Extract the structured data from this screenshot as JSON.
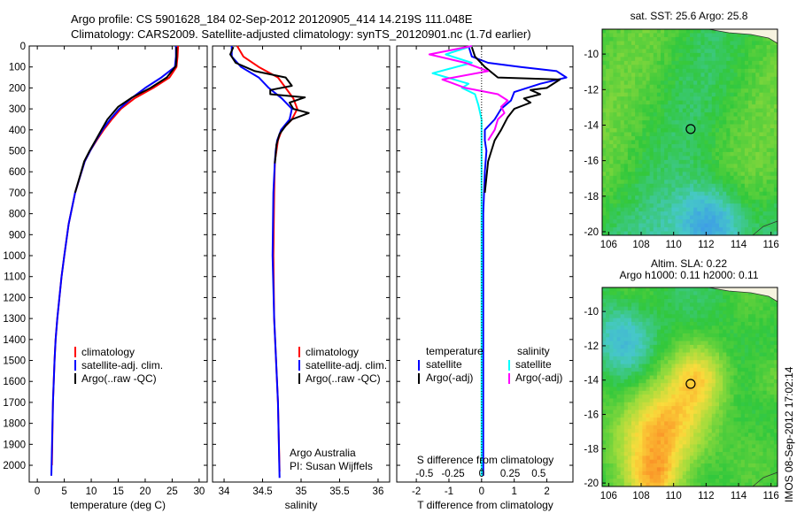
{
  "header": {
    "title_line1": "Argo profile: CS 5901628_184 02-Sep-2012 20120905_414 14.219S 111.048E",
    "title_line2": "Climatology: CARS2009. Satellite-adjusted climatology: synTS_20120901.nc (1.7d earlier)"
  },
  "colors": {
    "climatology": "#ff0000",
    "satellite": "#0000ff",
    "argo": "#000000",
    "sat_salinity": "#00ffff",
    "argo_salinity": "#ff00ff"
  },
  "panel_temperature": {
    "xlabel": "temperature (deg C)",
    "legend": [
      "climatology",
      "satellite-adj. clim.",
      "Argo(..raw -QC)"
    ]
  },
  "panel_salinity": {
    "xlabel": "salinity",
    "legend": [
      "climatology",
      "satellite-adj. clim.",
      "Argo(..raw -QC)"
    ],
    "note_line1": "Argo Australia",
    "note_line2": "PI: Susan Wijffels"
  },
  "panel_difference": {
    "xlabel_bottom": "T difference from climatology",
    "xlabel_top": "S difference from climatology",
    "legend_headers": [
      "temperature",
      "salinity"
    ],
    "legend_temperature": [
      "satellite",
      "Argo(-adj)"
    ],
    "legend_salinity": [
      "satellite",
      "Argo(-adj)"
    ]
  },
  "map_sst": {
    "title": "sat. SST: 25.6 Argo: 25.8",
    "xticks": [
      "106",
      "108",
      "110",
      "112",
      "114",
      "116"
    ],
    "yticks": [
      "-10",
      "-12",
      "-14",
      "-16",
      "-18",
      "-20"
    ]
  },
  "map_sla": {
    "title_line1": "Altim. SLA: 0.22",
    "title_line2": "Argo h1000: 0.11 h2000: 0.11",
    "xticks": [
      "106",
      "108",
      "110",
      "112",
      "114",
      "116"
    ],
    "yticks": [
      "-10",
      "-12",
      "-14",
      "-16",
      "-18",
      "-20"
    ]
  },
  "side_stamp": "IMOS 08-Sep-2012 17:02:14",
  "chart_data": [
    {
      "type": "line",
      "name": "temperature profile",
      "xlabel": "temperature (deg C)",
      "ylabel": "",
      "xlim": [
        -1.5,
        31.5
      ],
      "ylim": [
        2080,
        0
      ],
      "xticks": [
        0,
        5,
        10,
        15,
        20,
        25,
        30
      ],
      "yticks": [
        0,
        100,
        200,
        300,
        400,
        500,
        600,
        700,
        800,
        900,
        1000,
        1100,
        1200,
        1300,
        1400,
        1500,
        1600,
        1700,
        1800,
        1900,
        2000
      ],
      "series": [
        {
          "name": "climatology",
          "color": "#ff0000",
          "x": [
            26.1,
            26.0,
            25.8,
            24.5,
            21.5,
            18.0,
            15.5,
            13.8,
            12.3,
            11.0,
            9.8,
            8.8,
            7.0,
            5.8,
            5.0,
            4.5,
            4.1,
            3.7,
            3.4,
            3.2,
            2.9,
            2.7
          ],
          "y": [
            0,
            50,
            100,
            150,
            200,
            250,
            300,
            350,
            400,
            450,
            500,
            550,
            700,
            850,
            1000,
            1100,
            1200,
            1300,
            1400,
            1500,
            1700,
            2000
          ]
        },
        {
          "name": "satellite-adj. clim.",
          "color": "#0000ff",
          "x": [
            25.7,
            25.7,
            25.5,
            23.0,
            20.0,
            17.4,
            15.2,
            13.5,
            12.1,
            10.9,
            9.8,
            8.8,
            7.0,
            5.8,
            5.0,
            4.5,
            4.1,
            3.7,
            3.4,
            3.2,
            2.9,
            2.6
          ],
          "y": [
            0,
            50,
            100,
            150,
            200,
            250,
            300,
            350,
            400,
            450,
            500,
            550,
            700,
            850,
            1000,
            1100,
            1200,
            1300,
            1400,
            1500,
            1700,
            2050
          ]
        },
        {
          "name": "Argo(..raw -QC)",
          "color": "#000000",
          "x": [
            25.8,
            25.8,
            25.7,
            24.0,
            21.0,
            17.6,
            15.0,
            13.0,
            11.9,
            10.8,
            9.7,
            8.7,
            7.0
          ],
          "y": [
            5,
            50,
            95,
            150,
            200,
            245,
            290,
            350,
            400,
            450,
            500,
            550,
            700
          ]
        }
      ]
    },
    {
      "type": "line",
      "name": "salinity profile",
      "xlabel": "salinity",
      "ylabel": "",
      "xlim": [
        33.85,
        36.15
      ],
      "ylim": [
        2080,
        0
      ],
      "xticks": [
        34,
        34.5,
        35,
        35.5,
        36
      ],
      "series": [
        {
          "name": "climatology",
          "color": "#ff0000",
          "x": [
            34.17,
            34.25,
            34.45,
            34.7,
            34.8,
            34.9,
            34.95,
            34.88,
            34.75,
            34.7,
            34.68,
            34.66,
            34.65,
            34.64,
            34.65,
            34.7,
            34.72
          ],
          "y": [
            0,
            50,
            100,
            150,
            200,
            250,
            300,
            350,
            400,
            450,
            500,
            550,
            700,
            1000,
            1300,
            1700,
            2030
          ]
        },
        {
          "name": "satellite-adj. clim.",
          "color": "#0000ff",
          "x": [
            34.1,
            34.1,
            34.22,
            34.45,
            34.58,
            34.75,
            34.88,
            34.85,
            34.74,
            34.69,
            34.67,
            34.66,
            34.64,
            34.63,
            34.65,
            34.7,
            34.72
          ],
          "y": [
            0,
            50,
            100,
            150,
            200,
            250,
            300,
            350,
            400,
            450,
            500,
            550,
            700,
            1000,
            1300,
            1700,
            2060
          ]
        },
        {
          "name": "Argo(..raw -QC)",
          "color": "#000000",
          "x": [
            34.12,
            34.08,
            34.15,
            34.4,
            34.8,
            34.88,
            34.6,
            34.6,
            35.05,
            34.85,
            34.9,
            35.1,
            34.88,
            34.8,
            34.72,
            34.68,
            34.67,
            34.66
          ],
          "y": [
            5,
            40,
            80,
            120,
            150,
            190,
            210,
            230,
            245,
            270,
            300,
            320,
            350,
            380,
            420,
            470,
            520,
            560
          ]
        }
      ]
    },
    {
      "type": "line",
      "name": "difference profile",
      "xlabel": "T difference from climatology",
      "ylabel": "",
      "xlim": [
        -2.6,
        2.8
      ],
      "ylim": [
        2080,
        0
      ],
      "xticks": [
        -2,
        -1,
        0,
        1,
        2
      ],
      "xlabel_top": "S difference from climatology",
      "xticks_top": [
        -0.5,
        -0.25,
        0,
        0.25,
        0.5
      ],
      "top_tick_positions_in_T_units": [
        -1.75,
        -0.875,
        0,
        0.875,
        1.75
      ],
      "series": [
        {
          "name": "temperature satellite",
          "color": "#0000ff",
          "x": [
            -0.4,
            -0.3,
            0.2,
            1.2,
            2.3,
            2.6,
            1.8,
            1.0,
            0.9,
            0.6,
            0.4,
            0.1,
            0.1,
            0.15,
            0.1,
            0.05,
            0.05,
            0.05,
            0.05
          ],
          "y": [
            0,
            50,
            80,
            100,
            120,
            150,
            180,
            220,
            260,
            300,
            350,
            400,
            450,
            500,
            600,
            800,
            1000,
            1500,
            2050
          ]
        },
        {
          "name": "temperature Argo(-adj)",
          "color": "#000000",
          "x": [
            -0.3,
            -0.2,
            0.1,
            0.5,
            2.4,
            2.0,
            1.5,
            1.8,
            1.3,
            1.5,
            1.0,
            0.8,
            0.6,
            0.4,
            0.3,
            0.2,
            0.1
          ],
          "y": [
            5,
            50,
            100,
            150,
            160,
            200,
            210,
            230,
            250,
            270,
            300,
            340,
            400,
            450,
            500,
            550,
            700
          ]
        },
        {
          "name": "salinity satellite",
          "color": "#00ffff",
          "x": [
            -0.3,
            -1.1,
            -0.3,
            -1.5,
            -0.4,
            -0.6,
            -0.2,
            -0.1,
            0.0,
            0.0,
            0.0,
            0.0
          ],
          "y": [
            0,
            40,
            80,
            130,
            180,
            200,
            230,
            280,
            350,
            450,
            700,
            2050
          ]
        },
        {
          "name": "salinity Argo(-adj)",
          "color": "#ff00ff",
          "x": [
            -0.3,
            -1.6,
            -0.5,
            0.2,
            -1.2,
            -0.5,
            0.5,
            0.8,
            0.6,
            0.7,
            0.5,
            0.4,
            0.2
          ],
          "y": [
            0,
            40,
            80,
            120,
            160,
            200,
            230,
            260,
            290,
            320,
            350,
            400,
            450
          ]
        }
      ]
    },
    {
      "type": "heatmap",
      "name": "satellite SST map",
      "title": "sat. SST: 25.6 Argo: 25.8",
      "xlim": [
        105.6,
        116.4
      ],
      "ylim": [
        -20.2,
        -8.6
      ],
      "xticks": [
        106,
        108,
        110,
        112,
        114,
        116
      ],
      "yticks": [
        -10,
        -12,
        -14,
        -16,
        -18,
        -20
      ],
      "marker": {
        "lon": 111.048,
        "lat": -14.219
      }
    },
    {
      "type": "heatmap",
      "name": "altimetry SLA map",
      "title": "Altim. SLA: 0.22",
      "subtitle": "Argo h1000: 0.11 h2000: 0.11",
      "xlim": [
        105.6,
        116.4
      ],
      "ylim": [
        -20.2,
        -8.6
      ],
      "xticks": [
        106,
        108,
        110,
        112,
        114,
        116
      ],
      "yticks": [
        -10,
        -12,
        -14,
        -16,
        -18,
        -20
      ],
      "marker": {
        "lon": 111.048,
        "lat": -14.219
      }
    }
  ]
}
